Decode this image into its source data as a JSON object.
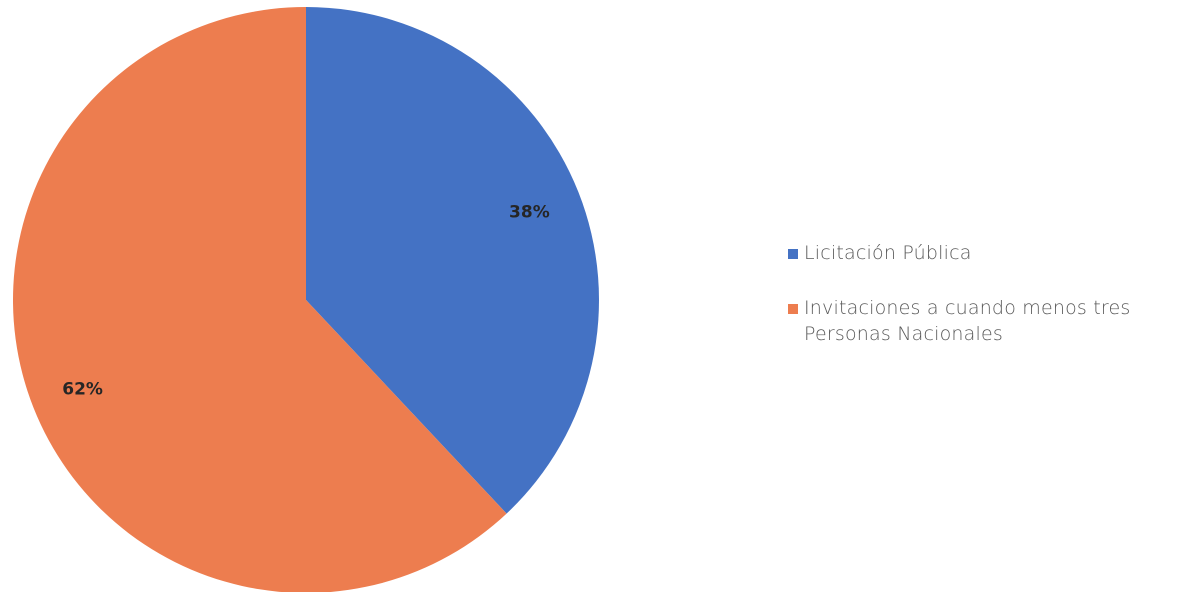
{
  "chart_data": {
    "type": "pie",
    "series": [
      {
        "values": [
          38,
          62
        ]
      }
    ],
    "categories": [
      "Licitación Pública",
      "Invitaciones a cuando menos tres Personas Nacionales"
    ],
    "data_labels": [
      "38%",
      "62%"
    ],
    "colors": [
      "#4472C4",
      "#ED7D4F"
    ],
    "legend_position": "right"
  }
}
